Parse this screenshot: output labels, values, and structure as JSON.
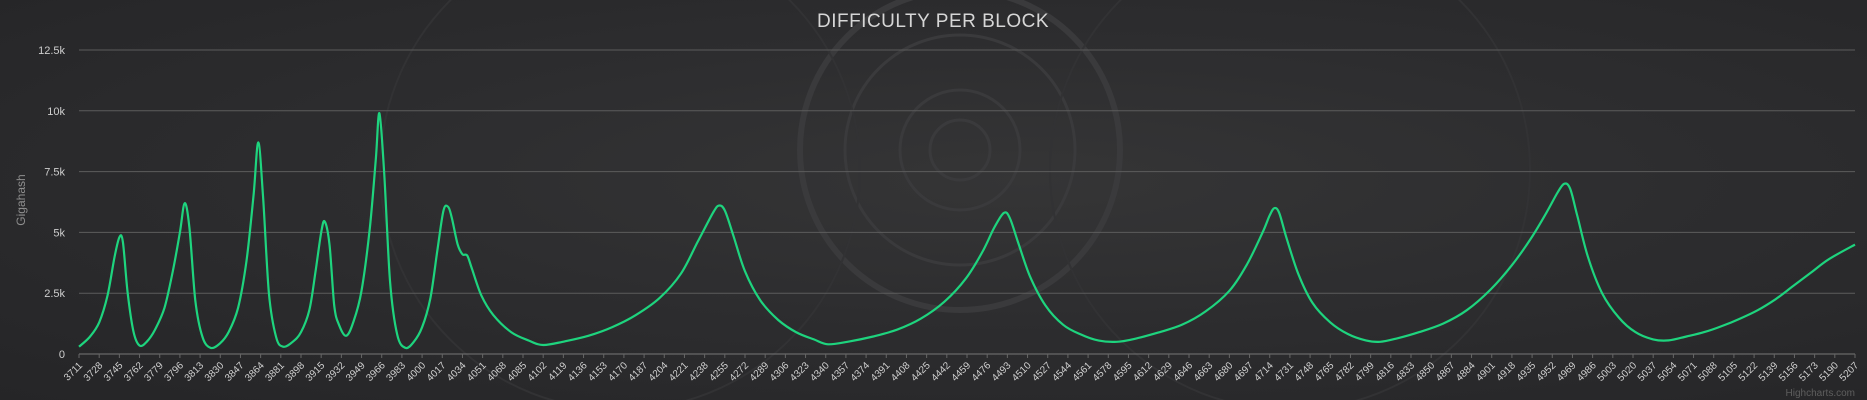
{
  "chart_data": {
    "type": "line",
    "title": "DIFFICULTY PER BLOCK",
    "xlabel": "",
    "ylabel": "Gigahash",
    "credit": "Highcharts.com",
    "ylim": [
      0,
      12500
    ],
    "yticks": [
      0,
      2500,
      5000,
      7500,
      10000,
      12500
    ],
    "ytick_labels": [
      "0",
      "2.5k",
      "5k",
      "7.5k",
      "10k",
      "12.5k"
    ],
    "xlim": [
      3711,
      5207
    ],
    "x_tick_labels": [
      3711,
      3728,
      3745,
      3762,
      3779,
      3796,
      3813,
      3830,
      3847,
      3864,
      3881,
      3898,
      3915,
      3932,
      3949,
      3966,
      3983,
      4000,
      4017,
      4034,
      4051,
      4068,
      4085,
      4102,
      4119,
      4136,
      4153,
      4170,
      4187,
      4204,
      4221,
      4238,
      4255,
      4272,
      4289,
      4306,
      4323,
      4340,
      4357,
      4374,
      4391,
      4408,
      4425,
      4442,
      4459,
      4476,
      4493,
      4510,
      4527,
      4544,
      4561,
      4578,
      4595,
      4612,
      4629,
      4646,
      4663,
      4680,
      4697,
      4714,
      4731,
      4748,
      4765,
      4782,
      4799,
      4816,
      4833,
      4850,
      4867,
      4884,
      4901,
      4918,
      4935,
      4952,
      4969,
      4986,
      5003,
      5020,
      5037,
      5054,
      5071,
      5088,
      5105,
      5122,
      5139,
      5156,
      5173,
      5190,
      5207
    ],
    "grid": true,
    "line_color": "#1ed47e",
    "series": [
      {
        "values_xy": [
          [
            3711,
            300
          ],
          [
            3720,
            700
          ],
          [
            3728,
            1300
          ],
          [
            3735,
            2400
          ],
          [
            3741,
            4000
          ],
          [
            3745,
            4800
          ],
          [
            3748,
            4600
          ],
          [
            3752,
            2500
          ],
          [
            3757,
            900
          ],
          [
            3762,
            350
          ],
          [
            3768,
            500
          ],
          [
            3775,
            1000
          ],
          [
            3783,
            1900
          ],
          [
            3790,
            3400
          ],
          [
            3796,
            5000
          ],
          [
            3800,
            6200
          ],
          [
            3804,
            5200
          ],
          [
            3809,
            2200
          ],
          [
            3815,
            700
          ],
          [
            3822,
            250
          ],
          [
            3830,
            450
          ],
          [
            3837,
            900
          ],
          [
            3845,
            1900
          ],
          [
            3852,
            3800
          ],
          [
            3858,
            6500
          ],
          [
            3862,
            8700
          ],
          [
            3866,
            6500
          ],
          [
            3871,
            2500
          ],
          [
            3877,
            700
          ],
          [
            3883,
            300
          ],
          [
            3891,
            500
          ],
          [
            3898,
            900
          ],
          [
            3905,
            1800
          ],
          [
            3910,
            3300
          ],
          [
            3915,
            5000
          ],
          [
            3918,
            5450
          ],
          [
            3922,
            4500
          ],
          [
            3926,
            2000
          ],
          [
            3930,
            1200
          ],
          [
            3936,
            750
          ],
          [
            3942,
            1300
          ],
          [
            3949,
            2600
          ],
          [
            3956,
            5200
          ],
          [
            3961,
            8000
          ],
          [
            3964,
            9900
          ],
          [
            3968,
            7500
          ],
          [
            3973,
            3000
          ],
          [
            3979,
            800
          ],
          [
            3986,
            250
          ],
          [
            3993,
            500
          ],
          [
            4000,
            1100
          ],
          [
            4007,
            2300
          ],
          [
            4013,
            4300
          ],
          [
            4018,
            5900
          ],
          [
            4022,
            6050
          ],
          [
            4025,
            5600
          ],
          [
            4030,
            4500
          ],
          [
            4034,
            4100
          ],
          [
            4038,
            4050
          ],
          [
            4042,
            3500
          ],
          [
            4050,
            2400
          ],
          [
            4060,
            1600
          ],
          [
            4075,
            900
          ],
          [
            4090,
            550
          ],
          [
            4102,
            370
          ],
          [
            4120,
            520
          ],
          [
            4140,
            750
          ],
          [
            4160,
            1100
          ],
          [
            4180,
            1600
          ],
          [
            4200,
            2300
          ],
          [
            4218,
            3300
          ],
          [
            4232,
            4600
          ],
          [
            4245,
            5800
          ],
          [
            4250,
            6100
          ],
          [
            4255,
            5900
          ],
          [
            4262,
            4900
          ],
          [
            4272,
            3400
          ],
          [
            4285,
            2200
          ],
          [
            4300,
            1400
          ],
          [
            4315,
            900
          ],
          [
            4330,
            600
          ],
          [
            4342,
            400
          ],
          [
            4360,
            520
          ],
          [
            4380,
            720
          ],
          [
            4400,
            1000
          ],
          [
            4420,
            1450
          ],
          [
            4440,
            2150
          ],
          [
            4458,
            3100
          ],
          [
            4472,
            4200
          ],
          [
            4482,
            5200
          ],
          [
            4490,
            5800
          ],
          [
            4495,
            5600
          ],
          [
            4502,
            4600
          ],
          [
            4512,
            3200
          ],
          [
            4525,
            2000
          ],
          [
            4540,
            1200
          ],
          [
            4555,
            800
          ],
          [
            4570,
            550
          ],
          [
            4585,
            500
          ],
          [
            4600,
            620
          ],
          [
            4620,
            880
          ],
          [
            4640,
            1200
          ],
          [
            4660,
            1750
          ],
          [
            4680,
            2600
          ],
          [
            4695,
            3700
          ],
          [
            4708,
            5000
          ],
          [
            4714,
            5700
          ],
          [
            4718,
            6000
          ],
          [
            4722,
            5800
          ],
          [
            4728,
            4800
          ],
          [
            4738,
            3300
          ],
          [
            4750,
            2100
          ],
          [
            4765,
            1300
          ],
          [
            4780,
            820
          ],
          [
            4795,
            560
          ],
          [
            4807,
            500
          ],
          [
            4822,
            650
          ],
          [
            4840,
            900
          ],
          [
            4860,
            1250
          ],
          [
            4880,
            1800
          ],
          [
            4900,
            2650
          ],
          [
            4918,
            3650
          ],
          [
            4934,
            4750
          ],
          [
            4947,
            5800
          ],
          [
            4956,
            6600
          ],
          [
            4962,
            7000
          ],
          [
            4967,
            6800
          ],
          [
            4973,
            5700
          ],
          [
            4982,
            4000
          ],
          [
            4994,
            2500
          ],
          [
            5008,
            1500
          ],
          [
            5022,
            900
          ],
          [
            5037,
            600
          ],
          [
            5050,
            560
          ],
          [
            5065,
            720
          ],
          [
            5080,
            900
          ],
          [
            5095,
            1150
          ],
          [
            5110,
            1450
          ],
          [
            5125,
            1800
          ],
          [
            5140,
            2250
          ],
          [
            5155,
            2800
          ],
          [
            5170,
            3350
          ],
          [
            5185,
            3900
          ],
          [
            5207,
            4500
          ]
        ]
      }
    ]
  }
}
